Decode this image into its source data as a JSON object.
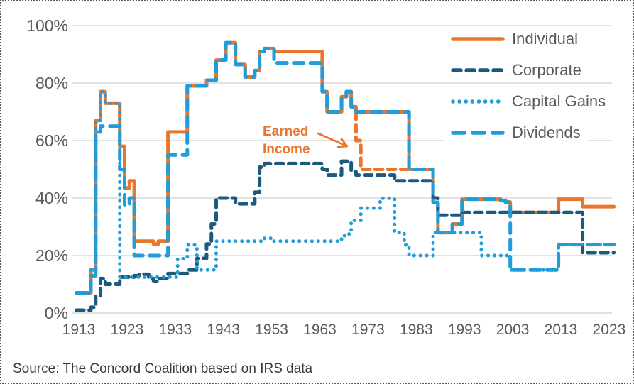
{
  "colors": {
    "individual": "#E8762C",
    "corporate": "#1C5A7D",
    "capital_gains": "#1F9CD9",
    "dividends": "#1F9CD9",
    "grid": "#D9D9D9",
    "axis_text": "#595959",
    "source_text": "#3A3A3A",
    "annotation": "#E8762C",
    "background": "#FFFFFF"
  },
  "legend": {
    "items": [
      {
        "label": "Individual",
        "color_key": "individual",
        "style": "solid"
      },
      {
        "label": "Corporate",
        "color_key": "corporate",
        "style": "dash"
      },
      {
        "label": "Capital Gains",
        "color_key": "capital_gains",
        "style": "dot"
      },
      {
        "label": "Dividends",
        "color_key": "dividends",
        "style": "longdash"
      }
    ]
  },
  "annotation": {
    "line1": "Earned",
    "line2": "Income"
  },
  "source": {
    "text": "Source: The Concord Coalition based on IRS data"
  },
  "chart_data": {
    "type": "line",
    "subtype": "yearly-step",
    "grid": "horizontal",
    "legend_position": "top-right",
    "x_range": [
      1913,
      2024
    ],
    "ylim": [
      0,
      100
    ],
    "x_tick_values": [
      1913,
      1923,
      1933,
      1943,
      1953,
      1963,
      1973,
      1983,
      1993,
      2003,
      2013,
      2023
    ],
    "x_tick_labels": [
      "1913",
      "1923",
      "1933",
      "1943",
      "1953",
      "1963",
      "1973",
      "1983",
      "1993",
      "2003",
      "2013",
      "2023"
    ],
    "y_tick_values": [
      100,
      80,
      60,
      40,
      20,
      0
    ],
    "y_tick_labels": [
      "100%",
      "80%",
      "60%",
      "40%",
      "20%",
      "0%"
    ],
    "series": [
      {
        "name": "Individual",
        "color_key": "individual",
        "style": "solid",
        "end_year": 2024,
        "step_points": [
          [
            1913,
            7
          ],
          [
            1916,
            15
          ],
          [
            1917,
            67
          ],
          [
            1918,
            77
          ],
          [
            1919,
            73
          ],
          [
            1922,
            58
          ],
          [
            1923,
            43.5
          ],
          [
            1924,
            46
          ],
          [
            1925,
            25
          ],
          [
            1929,
            24
          ],
          [
            1930,
            25
          ],
          [
            1932,
            63
          ],
          [
            1936,
            79
          ],
          [
            1940,
            81
          ],
          [
            1942,
            88
          ],
          [
            1944,
            94
          ],
          [
            1946,
            86.45
          ],
          [
            1948,
            82.13
          ],
          [
            1950,
            84.36
          ],
          [
            1951,
            91
          ],
          [
            1952,
            92
          ],
          [
            1954,
            91
          ],
          [
            1964,
            77
          ],
          [
            1965,
            70
          ],
          [
            1968,
            75.25
          ],
          [
            1969,
            77
          ],
          [
            1970,
            71.75
          ],
          [
            1971,
            70
          ],
          [
            1982,
            50
          ],
          [
            1987,
            38.5
          ],
          [
            1988,
            28
          ],
          [
            1991,
            31
          ],
          [
            1993,
            39.6
          ],
          [
            2001,
            39.1
          ],
          [
            2002,
            38.6
          ],
          [
            2003,
            35
          ],
          [
            2013,
            39.6
          ],
          [
            2018,
            37
          ]
        ]
      },
      {
        "name": "Earned Income",
        "color_key": "individual",
        "style": "dash",
        "end_year": 1981,
        "lead_from": 70,
        "step_points": [
          [
            1971,
            60
          ],
          [
            1972,
            50
          ]
        ]
      },
      {
        "name": "Corporate",
        "color_key": "corporate",
        "style": "dash",
        "end_year": 2024,
        "step_points": [
          [
            1913,
            1
          ],
          [
            1916,
            2
          ],
          [
            1917,
            6
          ],
          [
            1918,
            12
          ],
          [
            1919,
            10
          ],
          [
            1922,
            12.5
          ],
          [
            1925,
            13
          ],
          [
            1926,
            13.5
          ],
          [
            1928,
            12
          ],
          [
            1929,
            11
          ],
          [
            1930,
            12
          ],
          [
            1932,
            13.75
          ],
          [
            1936,
            15
          ],
          [
            1938,
            19
          ],
          [
            1940,
            24
          ],
          [
            1941,
            31
          ],
          [
            1942,
            40
          ],
          [
            1946,
            38
          ],
          [
            1950,
            42
          ],
          [
            1951,
            50.75
          ],
          [
            1952,
            52
          ],
          [
            1964,
            50
          ],
          [
            1965,
            48
          ],
          [
            1968,
            52.8
          ],
          [
            1970,
            49.2
          ],
          [
            1971,
            48
          ],
          [
            1979,
            46
          ],
          [
            1987,
            40
          ],
          [
            1988,
            34
          ],
          [
            1993,
            35
          ],
          [
            2018,
            21
          ]
        ]
      },
      {
        "name": "Capital Gains",
        "color_key": "capital_gains",
        "style": "dot",
        "end_year": 2024,
        "step_points": [
          [
            1913,
            7
          ],
          [
            1916,
            15
          ],
          [
            1917,
            67
          ],
          [
            1918,
            77
          ],
          [
            1919,
            73
          ],
          [
            1922,
            12.5
          ],
          [
            1934,
            18.9
          ],
          [
            1936,
            23.7
          ],
          [
            1938,
            15
          ],
          [
            1942,
            25
          ],
          [
            1952,
            26
          ],
          [
            1954,
            25
          ],
          [
            1968,
            26.9
          ],
          [
            1969,
            27.5
          ],
          [
            1970,
            32.2
          ],
          [
            1972,
            36.5
          ],
          [
            1976,
            39.9
          ],
          [
            1979,
            28
          ],
          [
            1981,
            23.7
          ],
          [
            1982,
            20
          ],
          [
            1987,
            28
          ],
          [
            1997,
            20
          ],
          [
            2003,
            15
          ],
          [
            2013,
            23.8
          ]
        ]
      },
      {
        "name": "Dividends",
        "color_key": "dividends",
        "style": "longdash",
        "end_year": 2024,
        "step_points": [
          [
            1913,
            7
          ],
          [
            1916,
            13
          ],
          [
            1917,
            63
          ],
          [
            1918,
            65
          ],
          [
            1922,
            50
          ],
          [
            1923,
            37.5
          ],
          [
            1924,
            40
          ],
          [
            1925,
            20
          ],
          [
            1932,
            55
          ],
          [
            1936,
            79
          ],
          [
            1940,
            81
          ],
          [
            1942,
            88
          ],
          [
            1944,
            94
          ],
          [
            1946,
            86.45
          ],
          [
            1948,
            82.13
          ],
          [
            1950,
            84.36
          ],
          [
            1951,
            91
          ],
          [
            1952,
            92
          ],
          [
            1954,
            87
          ],
          [
            1964,
            77
          ],
          [
            1965,
            70
          ],
          [
            1968,
            75.25
          ],
          [
            1969,
            77
          ],
          [
            1970,
            71.75
          ],
          [
            1971,
            70
          ],
          [
            1982,
            50
          ],
          [
            1987,
            38.5
          ],
          [
            1988,
            28
          ],
          [
            1991,
            31
          ],
          [
            1993,
            39.6
          ],
          [
            2001,
            39.1
          ],
          [
            2002,
            38.6
          ],
          [
            2003,
            15
          ],
          [
            2013,
            23.8
          ]
        ]
      }
    ],
    "annotation_arrow": {
      "from_x": 446,
      "from_y": 186,
      "to_x": 487,
      "to_y": 204
    }
  }
}
